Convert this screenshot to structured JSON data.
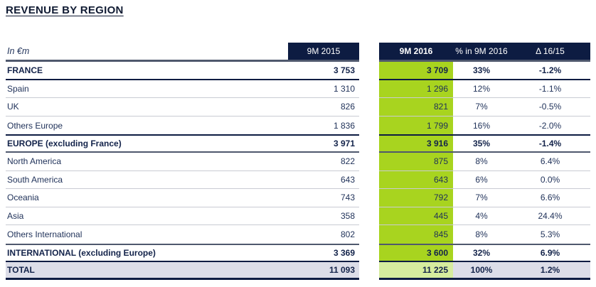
{
  "title": "REVENUE BY REGION",
  "table": {
    "unit_label": "In €m",
    "columns": [
      "9M 2015",
      "9M 2016",
      "% in 9M 2016",
      "Δ 16/15"
    ],
    "rows": [
      {
        "label": "FRANCE",
        "v2015": "3 753",
        "v2016": "3 709",
        "pct": "33%",
        "delta": "-1.2%",
        "kind": "subtotal"
      },
      {
        "label": "Spain",
        "v2015": "1 310",
        "v2016": "1 296",
        "pct": "12%",
        "delta": "-1.1%",
        "kind": "regular"
      },
      {
        "label": "UK",
        "v2015": "826",
        "v2016": "821",
        "pct": "7%",
        "delta": "-0.5%",
        "kind": "regular"
      },
      {
        "label": "Others Europe",
        "v2015": "1 836",
        "v2016": "1 799",
        "pct": "16%",
        "delta": "-2.0%",
        "kind": "regular"
      },
      {
        "label": "EUROPE (excluding France)",
        "v2015": "3 971",
        "v2016": "3 916",
        "pct": "35%",
        "delta": "-1.4%",
        "kind": "subtotal"
      },
      {
        "label": "North America",
        "v2015": "822",
        "v2016": "875",
        "pct": "8%",
        "delta": "6.4%",
        "kind": "regular"
      },
      {
        "label": "South America",
        "v2015": "643",
        "v2016": "643",
        "pct": "6%",
        "delta": "0.0%",
        "kind": "regular"
      },
      {
        "label": "Oceania",
        "v2015": "743",
        "v2016": "792",
        "pct": "7%",
        "delta": "6.6%",
        "kind": "regular"
      },
      {
        "label": "Asia",
        "v2015": "358",
        "v2016": "445",
        "pct": "4%",
        "delta": "24.4%",
        "kind": "regular"
      },
      {
        "label": "Others International",
        "v2015": "802",
        "v2016": "845",
        "pct": "8%",
        "delta": "5.3%",
        "kind": "regular"
      },
      {
        "label": "INTERNATIONAL (excluding Europe)",
        "v2015": "3 369",
        "v2016": "3 600",
        "pct": "32%",
        "delta": "6.9%",
        "kind": "subtotal"
      },
      {
        "label": "TOTAL",
        "v2015": "11 093",
        "v2016": "11 225",
        "pct": "100%",
        "delta": "1.2%",
        "kind": "total"
      }
    ]
  },
  "colors": {
    "header_navy": "#0d1c42",
    "slate_line": "#4f586d",
    "row_line": "#c9cbd3",
    "highlight_green": "#a8d41f",
    "highlight_green_light": "#d6ec9e",
    "total_row_bg": "#dcdde8",
    "text_navy": "#1e3058"
  }
}
